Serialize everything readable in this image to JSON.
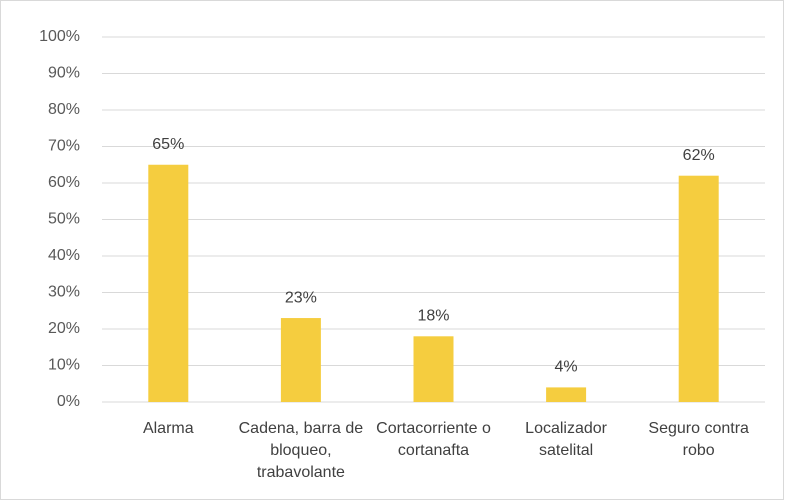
{
  "chart_data": {
    "type": "bar",
    "categories": [
      "Alarma",
      "Cadena, barra de bloqueo, trabavolante",
      "Cortacorriente o cortanafta",
      "Localizador satelital",
      "Seguro contra robo"
    ],
    "values": [
      65,
      23,
      18,
      4,
      62
    ],
    "value_labels": [
      "65%",
      "23%",
      "18%",
      "4%",
      "62%"
    ],
    "color": "#f5cd3f",
    "ylim": [
      0,
      100
    ],
    "yticks": [
      {
        "value": 0,
        "label": "0%"
      },
      {
        "value": 10,
        "label": "10%"
      },
      {
        "value": 20,
        "label": "20%"
      },
      {
        "value": 30,
        "label": "30%"
      },
      {
        "value": 40,
        "label": "40%"
      },
      {
        "value": 50,
        "label": "50%"
      },
      {
        "value": 60,
        "label": "60%"
      },
      {
        "value": 70,
        "label": "70%"
      },
      {
        "value": 80,
        "label": "80%"
      },
      {
        "value": 90,
        "label": "90%"
      },
      {
        "value": 100,
        "label": "100%"
      }
    ],
    "grid": true
  }
}
